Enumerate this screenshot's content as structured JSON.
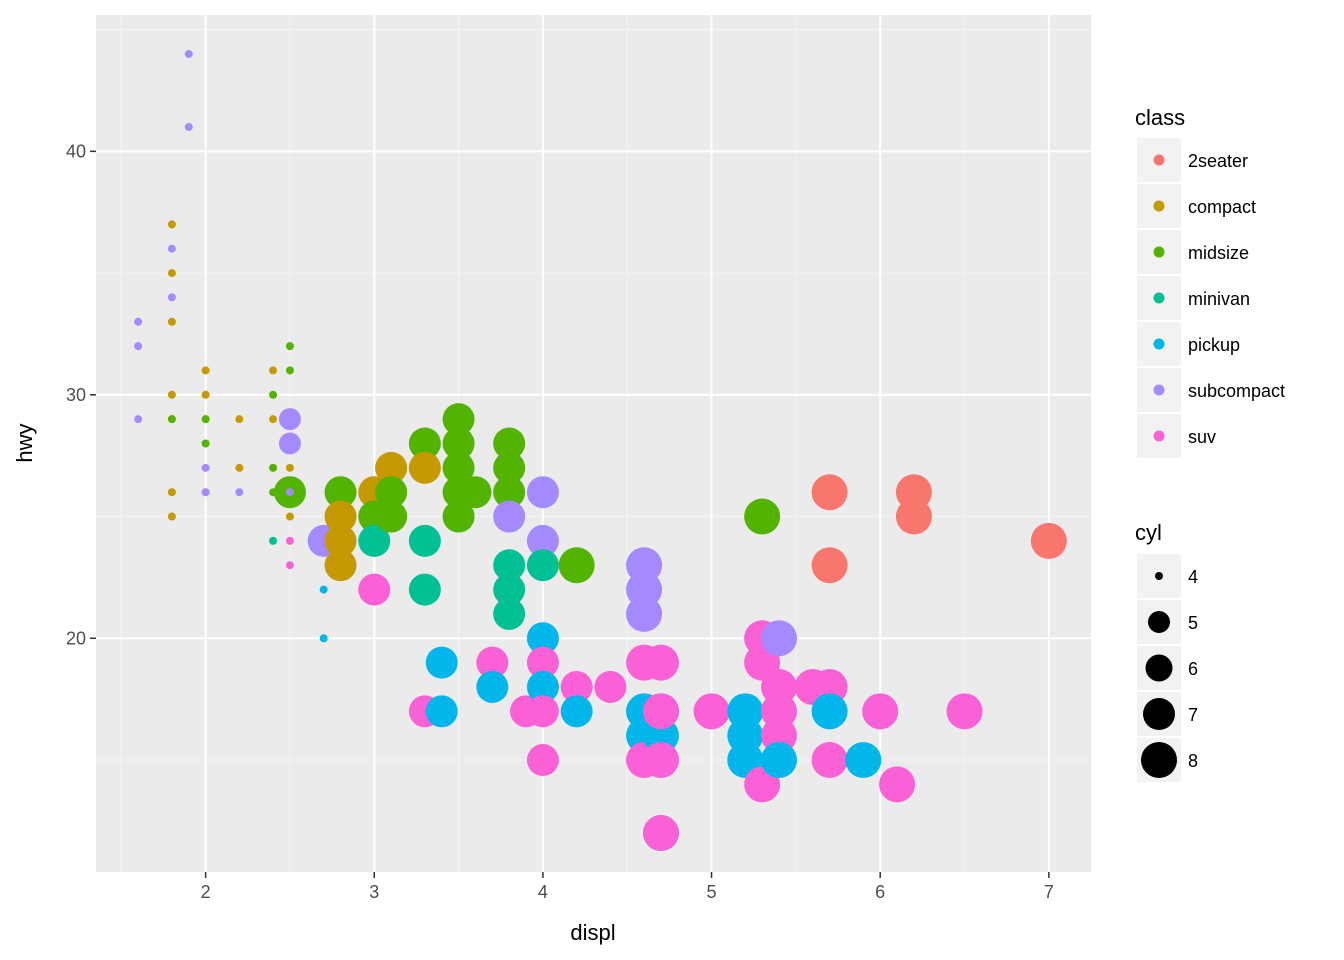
{
  "chart_data": {
    "type": "scatter",
    "xlabel": "displ",
    "ylabel": "hwy",
    "xlim": [
      1.35,
      7.25
    ],
    "ylim": [
      10.4,
      45.6
    ],
    "x_ticks": [
      2,
      3,
      4,
      5,
      6,
      7
    ],
    "y_ticks": [
      20,
      30,
      40
    ],
    "x_tick_labels": [
      "2",
      "3",
      "4",
      "5",
      "6",
      "7"
    ],
    "y_tick_labels": [
      "20",
      "30",
      "40"
    ],
    "grid": true,
    "legend_placement": "right",
    "color_legend": {
      "title": "class",
      "entries": [
        {
          "label": "2seater",
          "color": "#F8766D"
        },
        {
          "label": "compact",
          "color": "#C49A00"
        },
        {
          "label": "midsize",
          "color": "#53B400"
        },
        {
          "label": "minivan",
          "color": "#00C094"
        },
        {
          "label": "pickup",
          "color": "#00B6EB"
        },
        {
          "label": "subcompact",
          "color": "#A58AFF"
        },
        {
          "label": "suv",
          "color": "#FB61D7"
        }
      ]
    },
    "size_legend": {
      "title": "cyl",
      "entries": [
        {
          "label": "4",
          "value": 4
        },
        {
          "label": "5",
          "value": 5
        },
        {
          "label": "6",
          "value": 6
        },
        {
          "label": "7",
          "value": 7
        },
        {
          "label": "8",
          "value": 8
        }
      ]
    },
    "points": [
      {
        "x": 1.6,
        "y": 33,
        "class": "subcompact",
        "cyl": 4
      },
      {
        "x": 1.6,
        "y": 32,
        "class": "subcompact",
        "cyl": 4
      },
      {
        "x": 1.6,
        "y": 29,
        "class": "subcompact",
        "cyl": 4
      },
      {
        "x": 1.8,
        "y": 37,
        "class": "compact",
        "cyl": 4
      },
      {
        "x": 1.8,
        "y": 35,
        "class": "compact",
        "cyl": 4
      },
      {
        "x": 1.8,
        "y": 33,
        "class": "compact",
        "cyl": 4
      },
      {
        "x": 1.8,
        "y": 30,
        "class": "compact",
        "cyl": 4
      },
      {
        "x": 1.8,
        "y": 26,
        "class": "compact",
        "cyl": 4
      },
      {
        "x": 1.8,
        "y": 25,
        "class": "compact",
        "cyl": 4
      },
      {
        "x": 1.8,
        "y": 29,
        "class": "compact",
        "cyl": 4
      },
      {
        "x": 1.8,
        "y": 36,
        "class": "subcompact",
        "cyl": 4
      },
      {
        "x": 1.8,
        "y": 34,
        "class": "subcompact",
        "cyl": 4
      },
      {
        "x": 1.8,
        "y": 29,
        "class": "midsize",
        "cyl": 4
      },
      {
        "x": 1.9,
        "y": 44,
        "class": "subcompact",
        "cyl": 4
      },
      {
        "x": 1.9,
        "y": 41,
        "class": "subcompact",
        "cyl": 4
      },
      {
        "x": 2.0,
        "y": 31,
        "class": "compact",
        "cyl": 4
      },
      {
        "x": 2.0,
        "y": 30,
        "class": "compact",
        "cyl": 4
      },
      {
        "x": 2.0,
        "y": 29,
        "class": "compact",
        "cyl": 4
      },
      {
        "x": 2.0,
        "y": 26,
        "class": "compact",
        "cyl": 4
      },
      {
        "x": 2.0,
        "y": 29,
        "class": "midsize",
        "cyl": 4
      },
      {
        "x": 2.0,
        "y": 28,
        "class": "midsize",
        "cyl": 4
      },
      {
        "x": 2.0,
        "y": 27,
        "class": "subcompact",
        "cyl": 4
      },
      {
        "x": 2.0,
        "y": 26,
        "class": "subcompact",
        "cyl": 4
      },
      {
        "x": 2.2,
        "y": 29,
        "class": "compact",
        "cyl": 4
      },
      {
        "x": 2.2,
        "y": 27,
        "class": "compact",
        "cyl": 4
      },
      {
        "x": 2.2,
        "y": 26,
        "class": "subcompact",
        "cyl": 4
      },
      {
        "x": 2.4,
        "y": 31,
        "class": "compact",
        "cyl": 4
      },
      {
        "x": 2.4,
        "y": 30,
        "class": "midsize",
        "cyl": 4
      },
      {
        "x": 2.4,
        "y": 29,
        "class": "compact",
        "cyl": 4
      },
      {
        "x": 2.4,
        "y": 27,
        "class": "compact",
        "cyl": 4
      },
      {
        "x": 2.4,
        "y": 27,
        "class": "midsize",
        "cyl": 4
      },
      {
        "x": 2.4,
        "y": 26,
        "class": "midsize",
        "cyl": 4
      },
      {
        "x": 2.4,
        "y": 24,
        "class": "minivan",
        "cyl": 4
      },
      {
        "x": 2.5,
        "y": 32,
        "class": "midsize",
        "cyl": 4
      },
      {
        "x": 2.5,
        "y": 31,
        "class": "midsize",
        "cyl": 4
      },
      {
        "x": 2.5,
        "y": 29,
        "class": "subcompact",
        "cyl": 5
      },
      {
        "x": 2.5,
        "y": 28,
        "class": "subcompact",
        "cyl": 5
      },
      {
        "x": 2.5,
        "y": 27,
        "class": "compact",
        "cyl": 4
      },
      {
        "x": 2.5,
        "y": 26,
        "class": "midsize",
        "cyl": 6
      },
      {
        "x": 2.5,
        "y": 26,
        "class": "subcompact",
        "cyl": 4
      },
      {
        "x": 2.5,
        "y": 25,
        "class": "compact",
        "cyl": 4
      },
      {
        "x": 2.5,
        "y": 24,
        "class": "suv",
        "cyl": 4
      },
      {
        "x": 2.5,
        "y": 23,
        "class": "suv",
        "cyl": 4
      },
      {
        "x": 2.7,
        "y": 24,
        "class": "subcompact",
        "cyl": 6
      },
      {
        "x": 2.7,
        "y": 22,
        "class": "pickup",
        "cyl": 4
      },
      {
        "x": 2.7,
        "y": 20,
        "class": "pickup",
        "cyl": 4
      },
      {
        "x": 2.8,
        "y": 26,
        "class": "midsize",
        "cyl": 6
      },
      {
        "x": 2.8,
        "y": 25,
        "class": "compact",
        "cyl": 6
      },
      {
        "x": 2.8,
        "y": 24,
        "class": "compact",
        "cyl": 6
      },
      {
        "x": 2.8,
        "y": 23,
        "class": "compact",
        "cyl": 6
      },
      {
        "x": 3.0,
        "y": 26,
        "class": "compact",
        "cyl": 6
      },
      {
        "x": 3.0,
        "y": 25,
        "class": "midsize",
        "cyl": 6
      },
      {
        "x": 3.0,
        "y": 24,
        "class": "minivan",
        "cyl": 6
      },
      {
        "x": 3.0,
        "y": 22,
        "class": "suv",
        "cyl": 6
      },
      {
        "x": 3.1,
        "y": 27,
        "class": "compact",
        "cyl": 6
      },
      {
        "x": 3.1,
        "y": 26,
        "class": "midsize",
        "cyl": 6
      },
      {
        "x": 3.1,
        "y": 25,
        "class": "midsize",
        "cyl": 6
      },
      {
        "x": 3.3,
        "y": 28,
        "class": "midsize",
        "cyl": 6
      },
      {
        "x": 3.3,
        "y": 27,
        "class": "compact",
        "cyl": 6
      },
      {
        "x": 3.3,
        "y": 24,
        "class": "minivan",
        "cyl": 6
      },
      {
        "x": 3.3,
        "y": 22,
        "class": "minivan",
        "cyl": 6
      },
      {
        "x": 3.3,
        "y": 17,
        "class": "suv",
        "cyl": 6
      },
      {
        "x": 3.4,
        "y": 19,
        "class": "pickup",
        "cyl": 6
      },
      {
        "x": 3.4,
        "y": 17,
        "class": "pickup",
        "cyl": 6
      },
      {
        "x": 3.5,
        "y": 29,
        "class": "midsize",
        "cyl": 6
      },
      {
        "x": 3.5,
        "y": 28,
        "class": "midsize",
        "cyl": 6
      },
      {
        "x": 3.5,
        "y": 27,
        "class": "midsize",
        "cyl": 6
      },
      {
        "x": 3.5,
        "y": 26,
        "class": "midsize",
        "cyl": 6
      },
      {
        "x": 3.5,
        "y": 25,
        "class": "midsize",
        "cyl": 6
      },
      {
        "x": 3.6,
        "y": 26,
        "class": "midsize",
        "cyl": 6
      },
      {
        "x": 3.7,
        "y": 19,
        "class": "suv",
        "cyl": 6
      },
      {
        "x": 3.7,
        "y": 18,
        "class": "pickup",
        "cyl": 6
      },
      {
        "x": 3.8,
        "y": 28,
        "class": "midsize",
        "cyl": 6
      },
      {
        "x": 3.8,
        "y": 27,
        "class": "midsize",
        "cyl": 6
      },
      {
        "x": 3.8,
        "y": 26,
        "class": "midsize",
        "cyl": 6
      },
      {
        "x": 3.8,
        "y": 25,
        "class": "subcompact",
        "cyl": 6
      },
      {
        "x": 3.8,
        "y": 23,
        "class": "minivan",
        "cyl": 6
      },
      {
        "x": 3.8,
        "y": 22,
        "class": "minivan",
        "cyl": 6
      },
      {
        "x": 3.8,
        "y": 21,
        "class": "minivan",
        "cyl": 6
      },
      {
        "x": 3.9,
        "y": 17,
        "class": "suv",
        "cyl": 6
      },
      {
        "x": 4.0,
        "y": 26,
        "class": "subcompact",
        "cyl": 6
      },
      {
        "x": 4.0,
        "y": 24,
        "class": "subcompact",
        "cyl": 6
      },
      {
        "x": 4.0,
        "y": 23,
        "class": "minivan",
        "cyl": 6
      },
      {
        "x": 4.0,
        "y": 20,
        "class": "pickup",
        "cyl": 6
      },
      {
        "x": 4.0,
        "y": 19,
        "class": "suv",
        "cyl": 6
      },
      {
        "x": 4.0,
        "y": 18,
        "class": "pickup",
        "cyl": 6
      },
      {
        "x": 4.0,
        "y": 17,
        "class": "suv",
        "cyl": 6
      },
      {
        "x": 4.0,
        "y": 15,
        "class": "suv",
        "cyl": 6
      },
      {
        "x": 4.2,
        "y": 23,
        "class": "midsize",
        "cyl": 8
      },
      {
        "x": 4.2,
        "y": 18,
        "class": "suv",
        "cyl": 6
      },
      {
        "x": 4.2,
        "y": 17,
        "class": "pickup",
        "cyl": 6
      },
      {
        "x": 4.4,
        "y": 18,
        "class": "suv",
        "cyl": 6
      },
      {
        "x": 4.6,
        "y": 23,
        "class": "subcompact",
        "cyl": 8
      },
      {
        "x": 4.6,
        "y": 22,
        "class": "subcompact",
        "cyl": 8
      },
      {
        "x": 4.6,
        "y": 21,
        "class": "subcompact",
        "cyl": 8
      },
      {
        "x": 4.6,
        "y": 19,
        "class": "suv",
        "cyl": 8
      },
      {
        "x": 4.6,
        "y": 17,
        "class": "pickup",
        "cyl": 8
      },
      {
        "x": 4.6,
        "y": 16,
        "class": "pickup",
        "cyl": 8
      },
      {
        "x": 4.6,
        "y": 15,
        "class": "suv",
        "cyl": 8
      },
      {
        "x": 4.7,
        "y": 19,
        "class": "suv",
        "cyl": 8
      },
      {
        "x": 4.7,
        "y": 17,
        "class": "pickup",
        "cyl": 8
      },
      {
        "x": 4.7,
        "y": 16,
        "class": "pickup",
        "cyl": 8
      },
      {
        "x": 4.7,
        "y": 17,
        "class": "suv",
        "cyl": 8
      },
      {
        "x": 4.7,
        "y": 15,
        "class": "suv",
        "cyl": 8
      },
      {
        "x": 4.7,
        "y": 12,
        "class": "pickup",
        "cyl": 8
      },
      {
        "x": 4.7,
        "y": 12,
        "class": "suv",
        "cyl": 8
      },
      {
        "x": 5.0,
        "y": 17,
        "class": "suv",
        "cyl": 8
      },
      {
        "x": 5.2,
        "y": 17,
        "class": "pickup",
        "cyl": 8
      },
      {
        "x": 5.2,
        "y": 16,
        "class": "pickup",
        "cyl": 8
      },
      {
        "x": 5.2,
        "y": 15,
        "class": "pickup",
        "cyl": 8
      },
      {
        "x": 5.3,
        "y": 25,
        "class": "midsize",
        "cyl": 8
      },
      {
        "x": 5.3,
        "y": 20,
        "class": "suv",
        "cyl": 8
      },
      {
        "x": 5.3,
        "y": 19,
        "class": "suv",
        "cyl": 8
      },
      {
        "x": 5.3,
        "y": 14,
        "class": "suv",
        "cyl": 8
      },
      {
        "x": 5.4,
        "y": 20,
        "class": "subcompact",
        "cyl": 8
      },
      {
        "x": 5.4,
        "y": 18,
        "class": "suv",
        "cyl": 8
      },
      {
        "x": 5.4,
        "y": 17,
        "class": "suv",
        "cyl": 8
      },
      {
        "x": 5.4,
        "y": 16,
        "class": "suv",
        "cyl": 8
      },
      {
        "x": 5.4,
        "y": 15,
        "class": "pickup",
        "cyl": 8
      },
      {
        "x": 5.6,
        "y": 18,
        "class": "suv",
        "cyl": 8
      },
      {
        "x": 5.7,
        "y": 26,
        "class": "2seater",
        "cyl": 8
      },
      {
        "x": 5.7,
        "y": 23,
        "class": "2seater",
        "cyl": 8
      },
      {
        "x": 5.7,
        "y": 18,
        "class": "suv",
        "cyl": 8
      },
      {
        "x": 5.7,
        "y": 17,
        "class": "pickup",
        "cyl": 8
      },
      {
        "x": 5.7,
        "y": 15,
        "class": "suv",
        "cyl": 8
      },
      {
        "x": 5.9,
        "y": 15,
        "class": "pickup",
        "cyl": 8
      },
      {
        "x": 6.0,
        "y": 17,
        "class": "suv",
        "cyl": 8
      },
      {
        "x": 6.1,
        "y": 14,
        "class": "suv",
        "cyl": 8
      },
      {
        "x": 6.2,
        "y": 26,
        "class": "2seater",
        "cyl": 8
      },
      {
        "x": 6.2,
        "y": 25,
        "class": "2seater",
        "cyl": 8
      },
      {
        "x": 6.5,
        "y": 17,
        "class": "suv",
        "cyl": 8
      },
      {
        "x": 7.0,
        "y": 24,
        "class": "2seater",
        "cyl": 8
      }
    ]
  }
}
